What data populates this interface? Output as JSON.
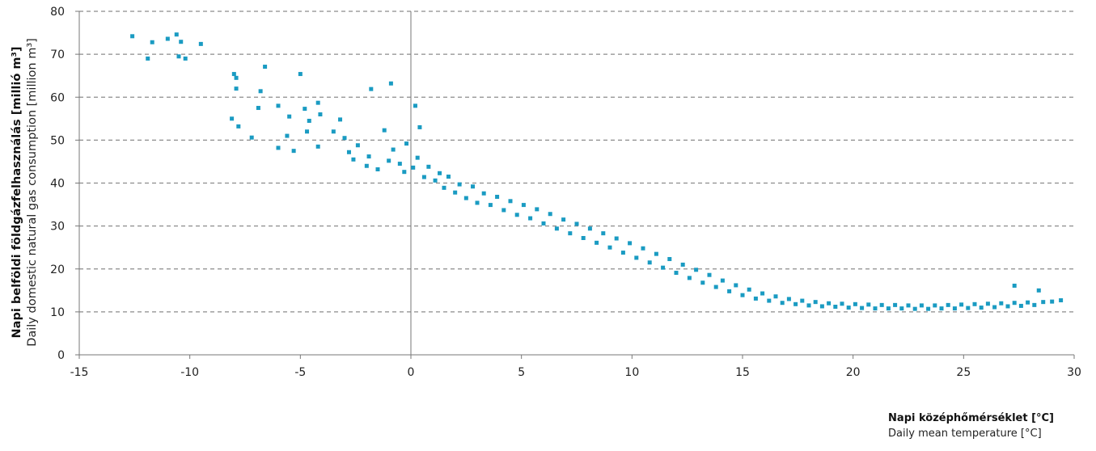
{
  "chart_data": {
    "type": "scatter",
    "xlabel_hu": "Napi középhőmérséklet [°C]",
    "xlabel_en": "Daily mean temperature  [°C]",
    "ylabel_hu": "Napi belföldi földgázfelhasználás [millió m³]",
    "ylabel_en": "Daily domestic natural gas consumption [million m³]",
    "xlim": [
      -15,
      30
    ],
    "ylim": [
      0,
      80
    ],
    "x_ticks": [
      "-15",
      "-10",
      "-5",
      "0",
      "5",
      "10",
      "15",
      "20",
      "25",
      "30"
    ],
    "y_ticks": [
      "0",
      "10",
      "20",
      "30",
      "40",
      "50",
      "60",
      "70",
      "80"
    ],
    "grid": "horizontal dashed",
    "marker_color": "#1a9bc2",
    "legend": "none",
    "points": [
      [
        -12.6,
        74.2
      ],
      [
        -11.9,
        69.0
      ],
      [
        -11.7,
        72.8
      ],
      [
        -11.0,
        73.6
      ],
      [
        -10.6,
        74.6
      ],
      [
        -10.5,
        69.5
      ],
      [
        -10.2,
        69.0
      ],
      [
        -10.4,
        72.9
      ],
      [
        -9.5,
        72.4
      ],
      [
        -8.0,
        65.4
      ],
      [
        -7.9,
        64.5
      ],
      [
        -7.9,
        62.0
      ],
      [
        -8.1,
        55.0
      ],
      [
        -7.8,
        53.2
      ],
      [
        -6.6,
        67.1
      ],
      [
        -6.8,
        61.4
      ],
      [
        -6.9,
        57.5
      ],
      [
        -7.2,
        50.6
      ],
      [
        -6.0,
        58.0
      ],
      [
        -6.0,
        48.2
      ],
      [
        -5.6,
        51.0
      ],
      [
        -5.3,
        47.5
      ],
      [
        -5.5,
        55.5
      ],
      [
        -5.0,
        65.4
      ],
      [
        -4.8,
        57.3
      ],
      [
        -4.6,
        54.5
      ],
      [
        -4.7,
        52.0
      ],
      [
        -4.2,
        48.5
      ],
      [
        -4.1,
        56.0
      ],
      [
        -4.2,
        58.7
      ],
      [
        -1.8,
        61.9
      ],
      [
        -0.9,
        63.2
      ],
      [
        0.2,
        58.0
      ],
      [
        -1.2,
        52.3
      ],
      [
        0.4,
        53.0
      ],
      [
        -3.2,
        54.8
      ],
      [
        -3.5,
        52.0
      ],
      [
        -3.0,
        50.5
      ],
      [
        -2.8,
        47.2
      ],
      [
        -2.6,
        45.5
      ],
      [
        -2.4,
        48.8
      ],
      [
        -2.0,
        44.0
      ],
      [
        -1.9,
        46.2
      ],
      [
        -1.5,
        43.2
      ],
      [
        -1.0,
        45.2
      ],
      [
        -0.8,
        47.8
      ],
      [
        -0.5,
        44.5
      ],
      [
        -0.3,
        42.6
      ],
      [
        -0.2,
        49.2
      ],
      [
        0.1,
        43.6
      ],
      [
        0.3,
        45.9
      ],
      [
        0.6,
        41.4
      ],
      [
        0.8,
        43.8
      ],
      [
        1.1,
        40.6
      ],
      [
        1.3,
        42.3
      ],
      [
        1.5,
        38.9
      ],
      [
        1.7,
        41.5
      ],
      [
        2.0,
        37.8
      ],
      [
        2.2,
        39.7
      ],
      [
        2.5,
        36.5
      ],
      [
        2.8,
        39.2
      ],
      [
        3.0,
        35.4
      ],
      [
        3.3,
        37.6
      ],
      [
        3.6,
        34.9
      ],
      [
        3.9,
        36.8
      ],
      [
        4.2,
        33.7
      ],
      [
        4.5,
        35.8
      ],
      [
        4.8,
        32.6
      ],
      [
        5.1,
        34.9
      ],
      [
        5.4,
        31.8
      ],
      [
        5.7,
        33.9
      ],
      [
        6.0,
        30.6
      ],
      [
        6.3,
        32.8
      ],
      [
        6.6,
        29.4
      ],
      [
        6.9,
        31.5
      ],
      [
        7.2,
        28.3
      ],
      [
        7.5,
        30.5
      ],
      [
        7.8,
        27.2
      ],
      [
        8.1,
        29.4
      ],
      [
        8.4,
        26.1
      ],
      [
        8.7,
        28.3
      ],
      [
        9.0,
        25.0
      ],
      [
        9.3,
        27.1
      ],
      [
        9.6,
        23.8
      ],
      [
        9.9,
        26.0
      ],
      [
        10.2,
        22.6
      ],
      [
        10.5,
        24.8
      ],
      [
        10.8,
        21.5
      ],
      [
        11.1,
        23.5
      ],
      [
        11.4,
        20.3
      ],
      [
        11.7,
        22.3
      ],
      [
        12.0,
        19.1
      ],
      [
        12.3,
        21.0
      ],
      [
        12.6,
        17.9
      ],
      [
        12.9,
        19.8
      ],
      [
        13.2,
        16.8
      ],
      [
        13.5,
        18.6
      ],
      [
        13.8,
        15.8
      ],
      [
        14.1,
        17.3
      ],
      [
        14.4,
        14.8
      ],
      [
        14.7,
        16.2
      ],
      [
        15.0,
        13.9
      ],
      [
        15.3,
        15.2
      ],
      [
        15.6,
        13.1
      ],
      [
        15.9,
        14.3
      ],
      [
        16.2,
        12.6
      ],
      [
        16.5,
        13.6
      ],
      [
        16.8,
        12.1
      ],
      [
        17.1,
        13.0
      ],
      [
        17.4,
        11.8
      ],
      [
        17.7,
        12.6
      ],
      [
        18.0,
        11.5
      ],
      [
        18.3,
        12.3
      ],
      [
        18.6,
        11.3
      ],
      [
        18.9,
        12.0
      ],
      [
        19.2,
        11.2
      ],
      [
        19.5,
        11.9
      ],
      [
        19.8,
        11.0
      ],
      [
        20.1,
        11.8
      ],
      [
        20.4,
        10.9
      ],
      [
        20.7,
        11.7
      ],
      [
        21.0,
        10.8
      ],
      [
        21.3,
        11.6
      ],
      [
        21.6,
        10.8
      ],
      [
        21.9,
        11.6
      ],
      [
        22.2,
        10.8
      ],
      [
        22.5,
        11.5
      ],
      [
        22.8,
        10.7
      ],
      [
        23.1,
        11.5
      ],
      [
        23.4,
        10.7
      ],
      [
        23.7,
        11.5
      ],
      [
        24.0,
        10.8
      ],
      [
        24.3,
        11.6
      ],
      [
        24.6,
        10.8
      ],
      [
        24.9,
        11.7
      ],
      [
        25.2,
        10.9
      ],
      [
        25.5,
        11.8
      ],
      [
        25.8,
        11.0
      ],
      [
        26.1,
        11.9
      ],
      [
        26.4,
        11.1
      ],
      [
        26.7,
        12.0
      ],
      [
        27.0,
        11.3
      ],
      [
        27.3,
        12.1
      ],
      [
        27.6,
        11.4
      ],
      [
        27.9,
        12.2
      ],
      [
        28.2,
        11.6
      ],
      [
        28.6,
        12.3
      ],
      [
        29.0,
        12.4
      ],
      [
        29.4,
        12.7
      ],
      [
        28.4,
        15.0
      ],
      [
        27.3,
        16.1
      ]
    ]
  }
}
